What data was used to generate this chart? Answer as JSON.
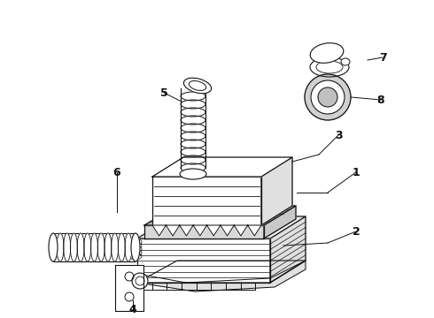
{
  "background_color": "#ffffff",
  "label_color": "#111111",
  "figsize": [
    4.9,
    3.6
  ],
  "dpi": 100,
  "line_gray": "#555555",
  "light_gray": "#cccccc",
  "mid_gray": "#aaaaaa"
}
